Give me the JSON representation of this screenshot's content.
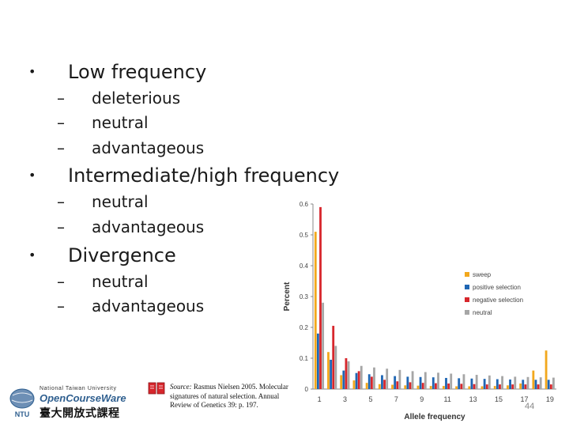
{
  "bullets": [
    {
      "label": "Low frequency",
      "subs": [
        "deleterious",
        "neutral",
        "advantageous"
      ]
    },
    {
      "label": "Intermediate/high frequency",
      "subs": [
        "neutral",
        "advantageous"
      ]
    },
    {
      "label": "Divergence",
      "subs": [
        "neutral",
        "advantageous"
      ]
    }
  ],
  "bullet_glyph": "•",
  "dash_glyph": "–",
  "source": {
    "label": "Source:",
    "text": "Rasmus Nielsen 2005. Molecular signatures of natural selection. Annual Review of Genetics 39: p. 197."
  },
  "logo": {
    "university": "National Taiwan University",
    "ocw": "OpenCourseWare",
    "chinese": "臺大開放式課程",
    "ntu_mark": "NTU"
  },
  "page_number": "44",
  "chart_data": {
    "type": "bar",
    "title": "",
    "xlabel": "Allele frequency",
    "ylabel": "Percent",
    "ylim": [
      0,
      0.6
    ],
    "yticks": [
      "0",
      "0.1",
      "0.2",
      "0.3",
      "0.4",
      "0.5",
      "0.6"
    ],
    "categories": [
      "1",
      "2",
      "3",
      "4",
      "5",
      "6",
      "7",
      "8",
      "9",
      "10",
      "11",
      "12",
      "13",
      "14",
      "15",
      "16",
      "17",
      "18",
      "19"
    ],
    "x_tick_labels": [
      "1",
      "3",
      "5",
      "7",
      "9",
      "11",
      "13",
      "15",
      "17",
      "19"
    ],
    "legend_position": "right",
    "series": [
      {
        "name": "sweep",
        "color": "#f2a81d",
        "values": [
          0.51,
          0.12,
          0.045,
          0.028,
          0.02,
          0.016,
          0.014,
          0.012,
          0.011,
          0.01,
          0.01,
          0.009,
          0.009,
          0.009,
          0.01,
          0.012,
          0.018,
          0.06,
          0.125
        ]
      },
      {
        "name": "positive selection",
        "color": "#1f66b3",
        "values": [
          0.18,
          0.095,
          0.06,
          0.052,
          0.048,
          0.045,
          0.042,
          0.04,
          0.039,
          0.038,
          0.036,
          0.035,
          0.034,
          0.033,
          0.032,
          0.031,
          0.03,
          0.03,
          0.03
        ]
      },
      {
        "name": "negative selection",
        "color": "#d7262c",
        "values": [
          0.59,
          0.205,
          0.1,
          0.058,
          0.04,
          0.03,
          0.025,
          0.022,
          0.02,
          0.019,
          0.018,
          0.017,
          0.016,
          0.015,
          0.015,
          0.015,
          0.015,
          0.015,
          0.015
        ]
      },
      {
        "name": "neutral",
        "color": "#a6a6a6",
        "values": [
          0.28,
          0.14,
          0.09,
          0.075,
          0.07,
          0.066,
          0.062,
          0.058,
          0.055,
          0.053,
          0.05,
          0.048,
          0.046,
          0.044,
          0.042,
          0.04,
          0.039,
          0.038,
          0.037
        ]
      }
    ]
  }
}
